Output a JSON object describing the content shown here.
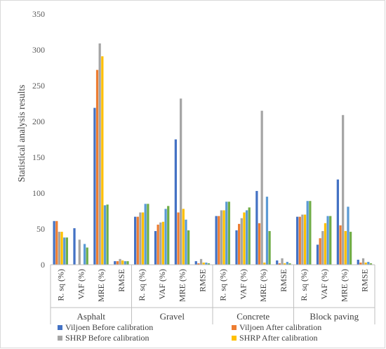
{
  "chart_data": {
    "type": "bar",
    "ylabel": "Statistical analysis results",
    "ylim": [
      0,
      350
    ],
    "yticks": [
      0,
      50,
      100,
      150,
      200,
      250,
      300,
      350
    ],
    "groups": [
      "Asphalt",
      "Gravel",
      "Concrete",
      "Block paving"
    ],
    "categories": [
      "R. sq (%)",
      "VAF (%)",
      "MRE (%)",
      "RMSE"
    ],
    "series": [
      {
        "name": "Viljoen  Before calibration",
        "color": "#4472c4",
        "values": [
          [
            61,
            51,
            219,
            5
          ],
          [
            67,
            47,
            175,
            5
          ],
          [
            68,
            48,
            103,
            6
          ],
          [
            67,
            28,
            119,
            7
          ]
        ]
      },
      {
        "name": "Viljoen  After calibration",
        "color": "#ed7d31",
        "values": [
          [
            61,
            0,
            272,
            5
          ],
          [
            67,
            56,
            73,
            2
          ],
          [
            68,
            57,
            58,
            2
          ],
          [
            67,
            37,
            55,
            3
          ]
        ]
      },
      {
        "name": "SHRP Before calibration",
        "color": "#a5a5a5",
        "values": [
          [
            46,
            35,
            309,
            8
          ],
          [
            73,
            59,
            232,
            8
          ],
          [
            76,
            65,
            215,
            9
          ],
          [
            70,
            47,
            209,
            9
          ]
        ]
      },
      {
        "name": "SHRP After calibration",
        "color": "#ffc000",
        "values": [
          [
            46,
            0,
            291,
            6
          ],
          [
            73,
            60,
            78,
            3
          ],
          [
            76,
            73,
            3,
            2
          ],
          [
            70,
            58,
            47,
            3
          ]
        ]
      },
      {
        "name": "",
        "color": "#5b9bd5",
        "values": [
          [
            38,
            29,
            83,
            5
          ],
          [
            85,
            78,
            63,
            3
          ],
          [
            88,
            76,
            95,
            4
          ],
          [
            89,
            68,
            81,
            4
          ]
        ]
      },
      {
        "name": "",
        "color": "#70ad47",
        "values": [
          [
            38,
            24,
            84,
            5
          ],
          [
            85,
            82,
            48,
            2
          ],
          [
            88,
            80,
            47,
            2
          ],
          [
            89,
            68,
            46,
            2
          ]
        ]
      }
    ],
    "grid": false,
    "legend_position": "bottom"
  }
}
